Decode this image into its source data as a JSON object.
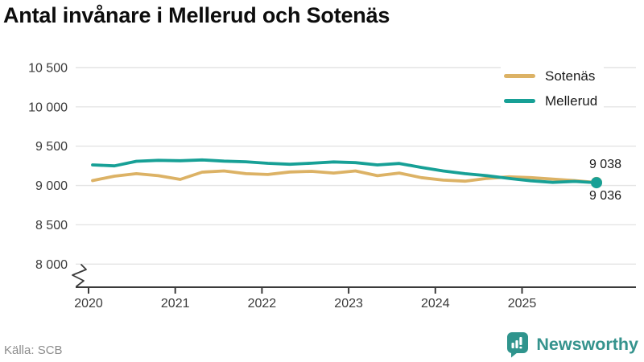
{
  "title": "Antal invånare i Mellerud och Sotenäs",
  "source": "Källa: SCB",
  "branding": {
    "name": "Newsworthy",
    "icon": "bar-chart-speech-bubble-icon"
  },
  "colors": {
    "sotenas": "#dcb265",
    "mellerud": "#17a096",
    "grid": "#e4e4e4",
    "axis": "#3b3b3b",
    "tick_text": "#3a3a3a",
    "title_text": "#0d0d0d",
    "muted_text": "#8c8c8c",
    "brand": "#35938d",
    "background": "#ffffff"
  },
  "chart_data": {
    "type": "line",
    "title": "Antal invånare i Mellerud och Sotenäs",
    "xlabel": "",
    "ylabel": "",
    "grid": true,
    "legend_position": "top-right",
    "axis_break_at_bottom": true,
    "ylim": [
      8000,
      10500
    ],
    "yticks": [
      "10 500",
      "10 000",
      "9 500",
      "9 000",
      "8 500",
      "8 000"
    ],
    "ytick_values": [
      10500,
      10000,
      9500,
      9000,
      8500,
      8000
    ],
    "xticks": [
      "2020",
      "2021",
      "2022",
      "2023",
      "2024",
      "2025"
    ],
    "categories": [
      "2020 Q1",
      "2020 Q2",
      "2020 Q3",
      "2020 Q4",
      "2021 Q1",
      "2021 Q2",
      "2021 Q3",
      "2021 Q4",
      "2022 Q1",
      "2022 Q2",
      "2022 Q3",
      "2022 Q4",
      "2023 Q1",
      "2023 Q2",
      "2023 Q3",
      "2023 Q4",
      "2024 Q1",
      "2024 Q2",
      "2024 Q3",
      "2024 Q4",
      "2025 Q1",
      "2025 Q2",
      "2025 Q3",
      "2025 Q4"
    ],
    "series": [
      {
        "name": "Sotenäs",
        "color": "#dcb265",
        "end_label": "9 038",
        "end_value": 9038,
        "values": [
          9062,
          9118,
          9150,
          9125,
          9078,
          9170,
          9185,
          9150,
          9140,
          9172,
          9180,
          9158,
          9185,
          9125,
          9158,
          9100,
          9068,
          9055,
          9090,
          9110,
          9100,
          9082,
          9062,
          9038
        ]
      },
      {
        "name": "Mellerud",
        "color": "#17a096",
        "end_label": "9 036",
        "end_value": 9036,
        "values": [
          9262,
          9250,
          9308,
          9320,
          9315,
          9325,
          9310,
          9302,
          9282,
          9270,
          9283,
          9300,
          9290,
          9262,
          9280,
          9230,
          9185,
          9150,
          9125,
          9090,
          9060,
          9040,
          9052,
          9036
        ]
      }
    ]
  }
}
